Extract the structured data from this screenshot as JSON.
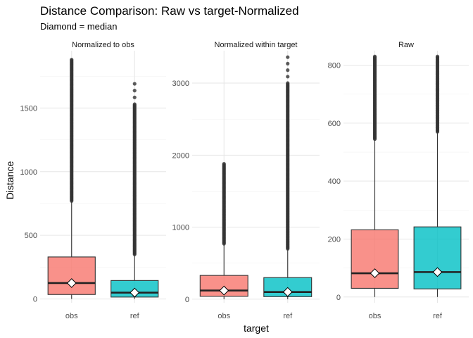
{
  "chart_data": {
    "type": "boxplot",
    "title": "Distance Comparison: Raw vs target-Normalized",
    "subtitle": "Diamond = median",
    "xlabel": "target",
    "ylabel": "Distance",
    "categories": [
      "obs",
      "ref"
    ],
    "colors": {
      "obs": "#F8766D",
      "ref": "#00BFC4"
    },
    "grid": true,
    "legend": "none",
    "panels": [
      {
        "title": "Normalized to obs",
        "ylim": [
          -30,
          1950
        ],
        "yticks": [
          0,
          500,
          1000,
          1500
        ],
        "boxes": [
          {
            "category": "obs",
            "min": 0,
            "q1": 35,
            "median": 125,
            "q3": 330,
            "whisker_high": 770,
            "outlier_max": 1880,
            "outlier_dense_to": 1880
          },
          {
            "category": "ref",
            "min": 0,
            "q1": 15,
            "median": 50,
            "q3": 145,
            "whisker_high": 350,
            "outlier_max": 1690,
            "outlier_dense_to": 1530
          }
        ]
      },
      {
        "title": "Normalized within target",
        "ylim": [
          -50,
          3450
        ],
        "yticks": [
          0,
          1000,
          2000,
          3000
        ],
        "boxes": [
          {
            "category": "obs",
            "min": 0,
            "q1": 40,
            "median": 120,
            "q3": 330,
            "whisker_high": 770,
            "outlier_max": 1880,
            "outlier_dense_to": 1880
          },
          {
            "category": "ref",
            "min": 0,
            "q1": 35,
            "median": 100,
            "q3": 300,
            "whisker_high": 700,
            "outlier_max": 3360,
            "outlier_dense_to": 3000
          }
        ]
      },
      {
        "title": "Raw",
        "ylim": [
          -20,
          850
        ],
        "yticks": [
          0,
          200,
          400,
          600,
          800
        ],
        "boxes": [
          {
            "category": "obs",
            "min": 0,
            "q1": 30,
            "median": 82,
            "q3": 232,
            "whisker_high": 545,
            "outlier_max": 830,
            "outlier_dense_to": 830
          },
          {
            "category": "ref",
            "min": 0,
            "q1": 28,
            "median": 86,
            "q3": 242,
            "whisker_high": 570,
            "outlier_max": 830,
            "outlier_dense_to": 830
          }
        ]
      }
    ]
  }
}
